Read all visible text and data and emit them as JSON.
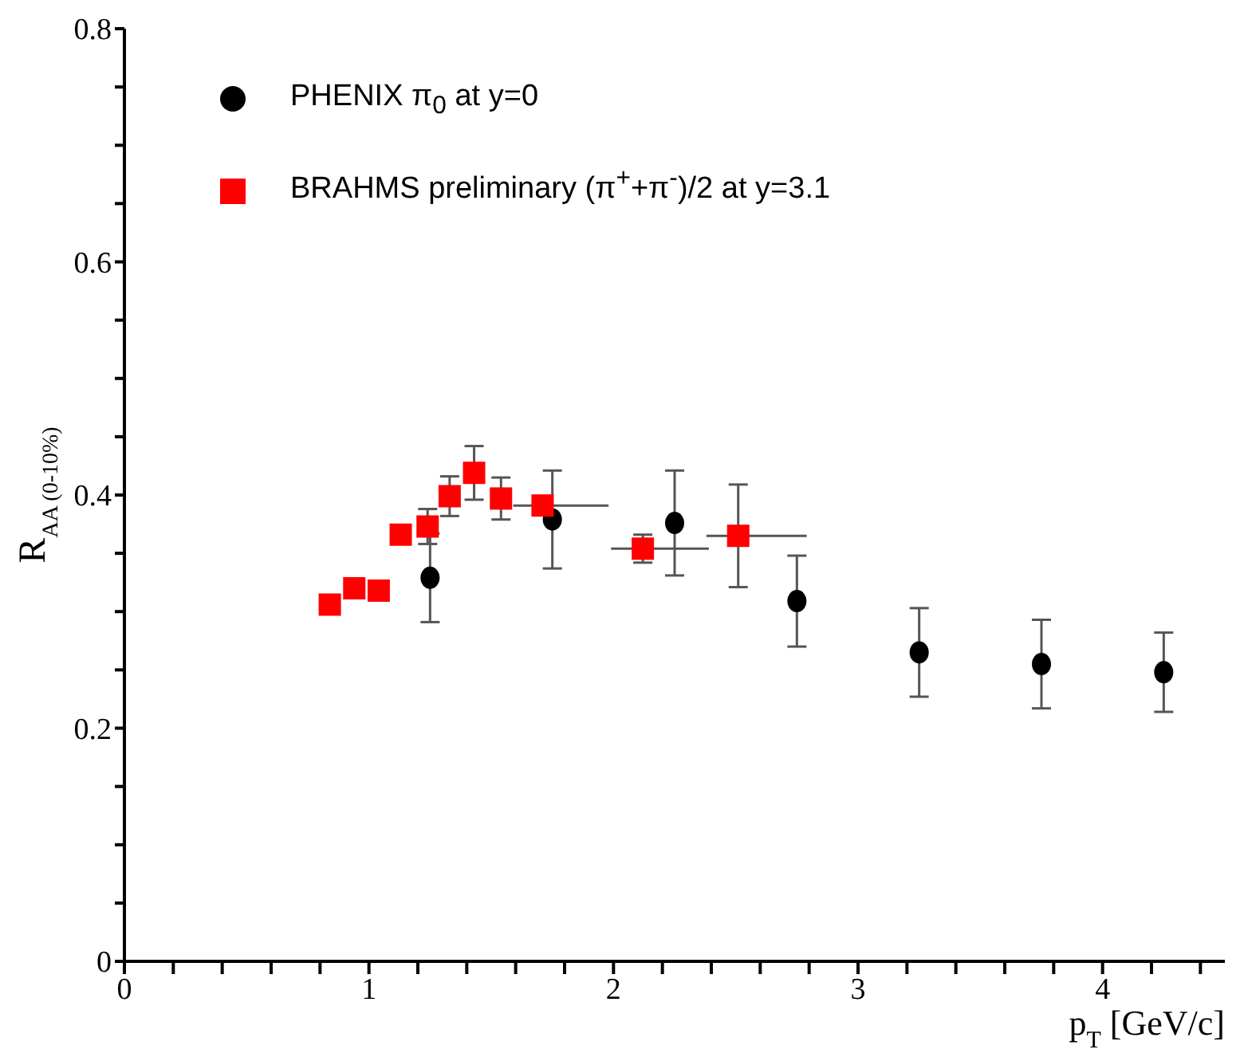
{
  "chart_data": {
    "type": "scatter",
    "xlabel": "p$_{T}$ [GeV/c]",
    "ylabel": "R$_{AA (0-10%)}$",
    "xlim": [
      0,
      4.5
    ],
    "ylim": [
      0,
      0.8
    ],
    "xticks": [
      0,
      {
        "value": 0.2,
        "label": null
      },
      {
        "value": 0.4,
        "label": null
      },
      {
        "value": 0.6,
        "label": null
      },
      {
        "value": 0.8,
        "label": null
      },
      1,
      {
        "value": 1.2,
        "label": null
      },
      {
        "value": 1.4,
        "label": null
      },
      {
        "value": 1.6,
        "label": null
      },
      {
        "value": 1.8,
        "label": null
      },
      2,
      {
        "value": 2.2,
        "label": null
      },
      {
        "value": 2.4,
        "label": null
      },
      {
        "value": 2.6,
        "label": null
      },
      {
        "value": 2.8,
        "label": null
      },
      3,
      {
        "value": 3.2,
        "label": null
      },
      {
        "value": 3.4,
        "label": null
      },
      {
        "value": 3.6,
        "label": null
      },
      {
        "value": 3.8,
        "label": null
      },
      4,
      {
        "value": 4.2,
        "label": null
      },
      {
        "value": 4.4,
        "label": null
      }
    ],
    "yticks": [
      0,
      {
        "value": 0.05,
        "label": null
      },
      {
        "value": 0.1,
        "label": null
      },
      {
        "value": 0.15,
        "label": null
      },
      0.2,
      {
        "value": 0.25,
        "label": null
      },
      {
        "value": 0.3,
        "label": null
      },
      {
        "value": 0.35,
        "label": null
      },
      0.4,
      {
        "value": 0.45,
        "label": null
      },
      {
        "value": 0.5,
        "label": null
      },
      {
        "value": 0.55,
        "label": null
      },
      0.6,
      {
        "value": 0.65,
        "label": null
      },
      {
        "value": 0.7,
        "label": null
      },
      {
        "value": 0.75,
        "label": null
      },
      0.8
    ],
    "legend": "top left",
    "grid": false,
    "series": [
      {
        "name": "PHENIX π$_{0}$ at y=0",
        "color": "#000000",
        "marker": "circle",
        "x": [
          1.25,
          1.75,
          2.25,
          2.75,
          3.25,
          3.75,
          4.25
        ],
        "values": [
          0.329,
          0.379,
          0.376,
          0.309,
          0.265,
          0.255,
          0.248
        ],
        "errors": [
          0.038,
          0.042,
          0.045,
          0.039,
          0.038,
          0.038,
          0.034
        ]
      },
      {
        "name": "BRAHMS preliminary (π$^{+}$+π$^{-}$)/2 at y=3.1",
        "color": "#ff0000",
        "marker": "square",
        "x": [
          0.84,
          0.94,
          1.04,
          1.13,
          1.24,
          1.33,
          1.43,
          1.54,
          1.71,
          2.12,
          2.51
        ],
        "values": [
          0.306,
          0.32,
          0.318,
          0.366,
          0.373,
          0.399,
          0.419,
          0.397,
          0.391,
          0.354,
          0.365
        ],
        "errors": [
          null,
          null,
          null,
          null,
          0.015,
          0.017,
          0.023,
          0.018,
          null,
          0.012,
          0.044
        ],
        "xerrors": [
          null,
          null,
          null,
          null,
          null,
          null,
          null,
          null,
          [
            1.59,
            1.98
          ],
          [
            1.99,
            2.39
          ],
          [
            2.38,
            2.79
          ]
        ]
      }
    ]
  }
}
